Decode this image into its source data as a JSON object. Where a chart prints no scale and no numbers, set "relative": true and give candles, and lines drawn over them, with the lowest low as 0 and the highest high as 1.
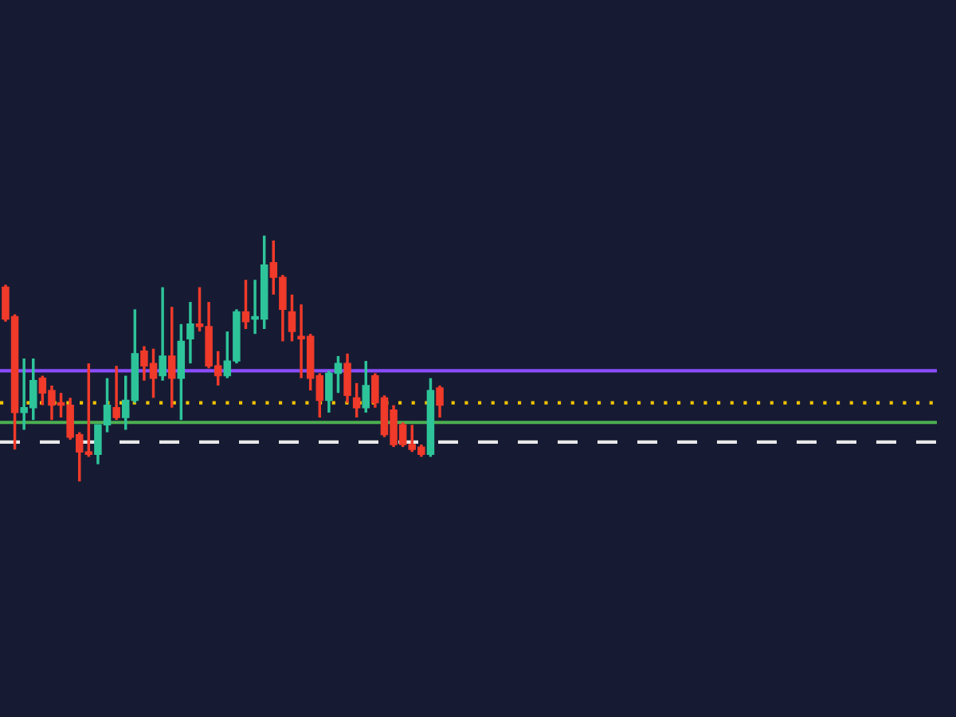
{
  "chart_data": {
    "type": "candlestick",
    "relative": true,
    "categories": [
      null,
      null,
      null,
      null,
      null,
      null,
      null,
      null,
      null,
      null,
      null,
      null,
      null,
      null,
      null,
      null,
      null,
      null,
      null,
      null,
      null,
      null,
      null,
      null,
      null,
      null,
      null,
      null,
      null,
      null,
      null,
      null,
      null,
      null,
      null,
      null,
      null,
      null,
      null,
      null,
      null,
      null,
      null,
      null,
      null,
      null,
      null,
      null
    ],
    "ohlc": [
      [
        0.79,
        0.8,
        0.65,
        0.66
      ],
      [
        0.67,
        0.68,
        0.13,
        0.28
      ],
      [
        0.28,
        0.5,
        0.21,
        0.3
      ],
      [
        0.3,
        0.5,
        0.25,
        0.41
      ],
      [
        0.42,
        0.43,
        0.31,
        0.36
      ],
      [
        0.37,
        0.39,
        0.25,
        0.31
      ],
      [
        0.32,
        0.36,
        0.26,
        0.31
      ],
      [
        0.31,
        0.34,
        0.17,
        0.18
      ],
      [
        0.19,
        0.2,
        0.0,
        0.12
      ],
      [
        0.12,
        0.48,
        0.1,
        0.11
      ],
      [
        0.11,
        0.23,
        0.07,
        0.23
      ],
      [
        0.23,
        0.42,
        0.2,
        0.31
      ],
      [
        0.3,
        0.47,
        0.25,
        0.26
      ],
      [
        0.26,
        0.43,
        0.21,
        0.33
      ],
      [
        0.33,
        0.7,
        0.32,
        0.52
      ],
      [
        0.53,
        0.55,
        0.41,
        0.47
      ],
      [
        0.48,
        0.54,
        0.34,
        0.42
      ],
      [
        0.43,
        0.79,
        0.41,
        0.51
      ],
      [
        0.51,
        0.71,
        0.3,
        0.42
      ],
      [
        0.42,
        0.64,
        0.25,
        0.57
      ],
      [
        0.58,
        0.73,
        0.48,
        0.64
      ],
      [
        0.64,
        0.79,
        0.61,
        0.63
      ],
      [
        0.63,
        0.73,
        0.46,
        0.47
      ],
      [
        0.47,
        0.53,
        0.39,
        0.43
      ],
      [
        0.43,
        0.61,
        0.42,
        0.49
      ],
      [
        0.49,
        0.7,
        0.48,
        0.69
      ],
      [
        0.69,
        0.82,
        0.62,
        0.65
      ],
      [
        0.66,
        0.82,
        0.6,
        0.67
      ],
      [
        0.66,
        1.0,
        0.62,
        0.88
      ],
      [
        0.89,
        0.98,
        0.76,
        0.83
      ],
      [
        0.83,
        0.84,
        0.57,
        0.7
      ],
      [
        0.69,
        0.76,
        0.57,
        0.61
      ],
      [
        0.59,
        0.72,
        0.42,
        0.58
      ],
      [
        0.59,
        0.6,
        0.37,
        0.42
      ],
      [
        0.43,
        0.44,
        0.26,
        0.33
      ],
      [
        0.33,
        0.45,
        0.28,
        0.44
      ],
      [
        0.44,
        0.51,
        0.36,
        0.48
      ],
      [
        0.48,
        0.52,
        0.32,
        0.35
      ],
      [
        0.34,
        0.4,
        0.26,
        0.3
      ],
      [
        0.3,
        0.49,
        0.28,
        0.39
      ],
      [
        0.43,
        0.44,
        0.3,
        0.32
      ],
      [
        0.34,
        0.35,
        0.18,
        0.19
      ],
      [
        0.29,
        0.31,
        0.14,
        0.15
      ],
      [
        0.23,
        0.24,
        0.14,
        0.15
      ],
      [
        0.15,
        0.23,
        0.12,
        0.13
      ],
      [
        0.14,
        0.15,
        0.1,
        0.11
      ],
      [
        0.11,
        0.42,
        0.1,
        0.37
      ],
      [
        0.38,
        0.39,
        0.26,
        0.31
      ]
    ],
    "ref_lines": [
      {
        "axis": "y",
        "value": 0.45,
        "color": "#8a4dff",
        "line_style": "solid"
      },
      {
        "axis": "y",
        "value": 0.32,
        "color": "#f2c400",
        "line_style": "dotted"
      },
      {
        "axis": "y",
        "value": 0.24,
        "color": "#4caf50",
        "line_style": "solid"
      },
      {
        "axis": "y",
        "value": 0.16,
        "color": "#e8e8e8",
        "line_style": "dashed"
      }
    ]
  }
}
